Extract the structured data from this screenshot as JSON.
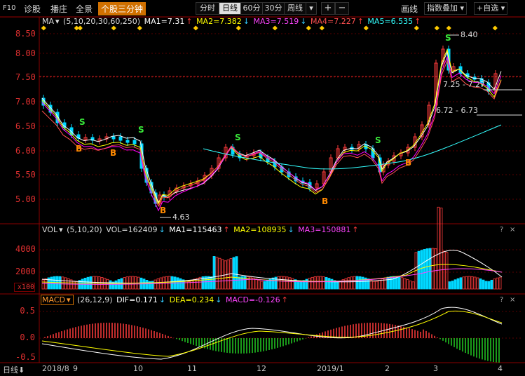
{
  "topbar": {
    "f10": "F10",
    "diagnose": "诊股",
    "plugin": "播庄",
    "fullview": "全景",
    "active_tab": "个股三分钟",
    "periods": [
      "分时",
      "日线",
      "60分",
      "30分",
      "周线"
    ],
    "active_period": "日线",
    "period_dropdown_arrow": "▾",
    "plus": "+",
    "minus": "−",
    "draw_line": "画线",
    "index_overlay": "指数叠加",
    "add_watch": "+自选"
  },
  "main_panel": {
    "indicator": "MA",
    "params": "(5,10,20,30,60,250)",
    "ma1": "MA1=7.31",
    "ma2": "MA2=7.382",
    "ma3": "MA3=7.519",
    "ma4": "MA4=7.227",
    "ma5": "MA5=6.535",
    "y_ticks": [
      "8.50",
      "8.00",
      "7.50",
      "7.00",
      "6.50",
      "6.00",
      "5.50",
      "5.00"
    ],
    "annotations": {
      "high": "8.40",
      "low": "4.63",
      "range1": "7.25 - 7.27",
      "range2": "6.72 - 6.73"
    },
    "signal_b": "B",
    "signal_s": "S"
  },
  "vol_panel": {
    "indicator": "VOL",
    "params": "(5,10,20)",
    "vol": "VOL=162409",
    "ma1": "MA1=115463",
    "ma2": "MA2=108935",
    "ma3": "MA3=150881",
    "y_ticks": [
      "4000",
      "2000"
    ],
    "unit": "x100"
  },
  "macd_panel": {
    "indicator": "MACD",
    "params": "(26,12,9)",
    "dif": "DIF=0.171",
    "dea": "DEA=0.234",
    "macd": "MACD=-0.126",
    "y_ticks": [
      "0.5",
      "0.0",
      "-0.5"
    ]
  },
  "xaxis": {
    "period": "日线",
    "labels": [
      "2018/8",
      "9",
      "10",
      "11",
      "12",
      "2019/1",
      "2",
      "3",
      "4"
    ]
  },
  "panel_icons": {
    "help": "?",
    "close": "×"
  },
  "colors": {
    "up": "#ff3b3b",
    "down": "#00d8ff",
    "ma1": "#ffffff",
    "ma2": "#ffff00",
    "ma3": "#ff00ff",
    "ma4": "#ff5050",
    "ma5": "#33ffff",
    "grid": "#7a0000",
    "accent": "#d07000"
  }
}
